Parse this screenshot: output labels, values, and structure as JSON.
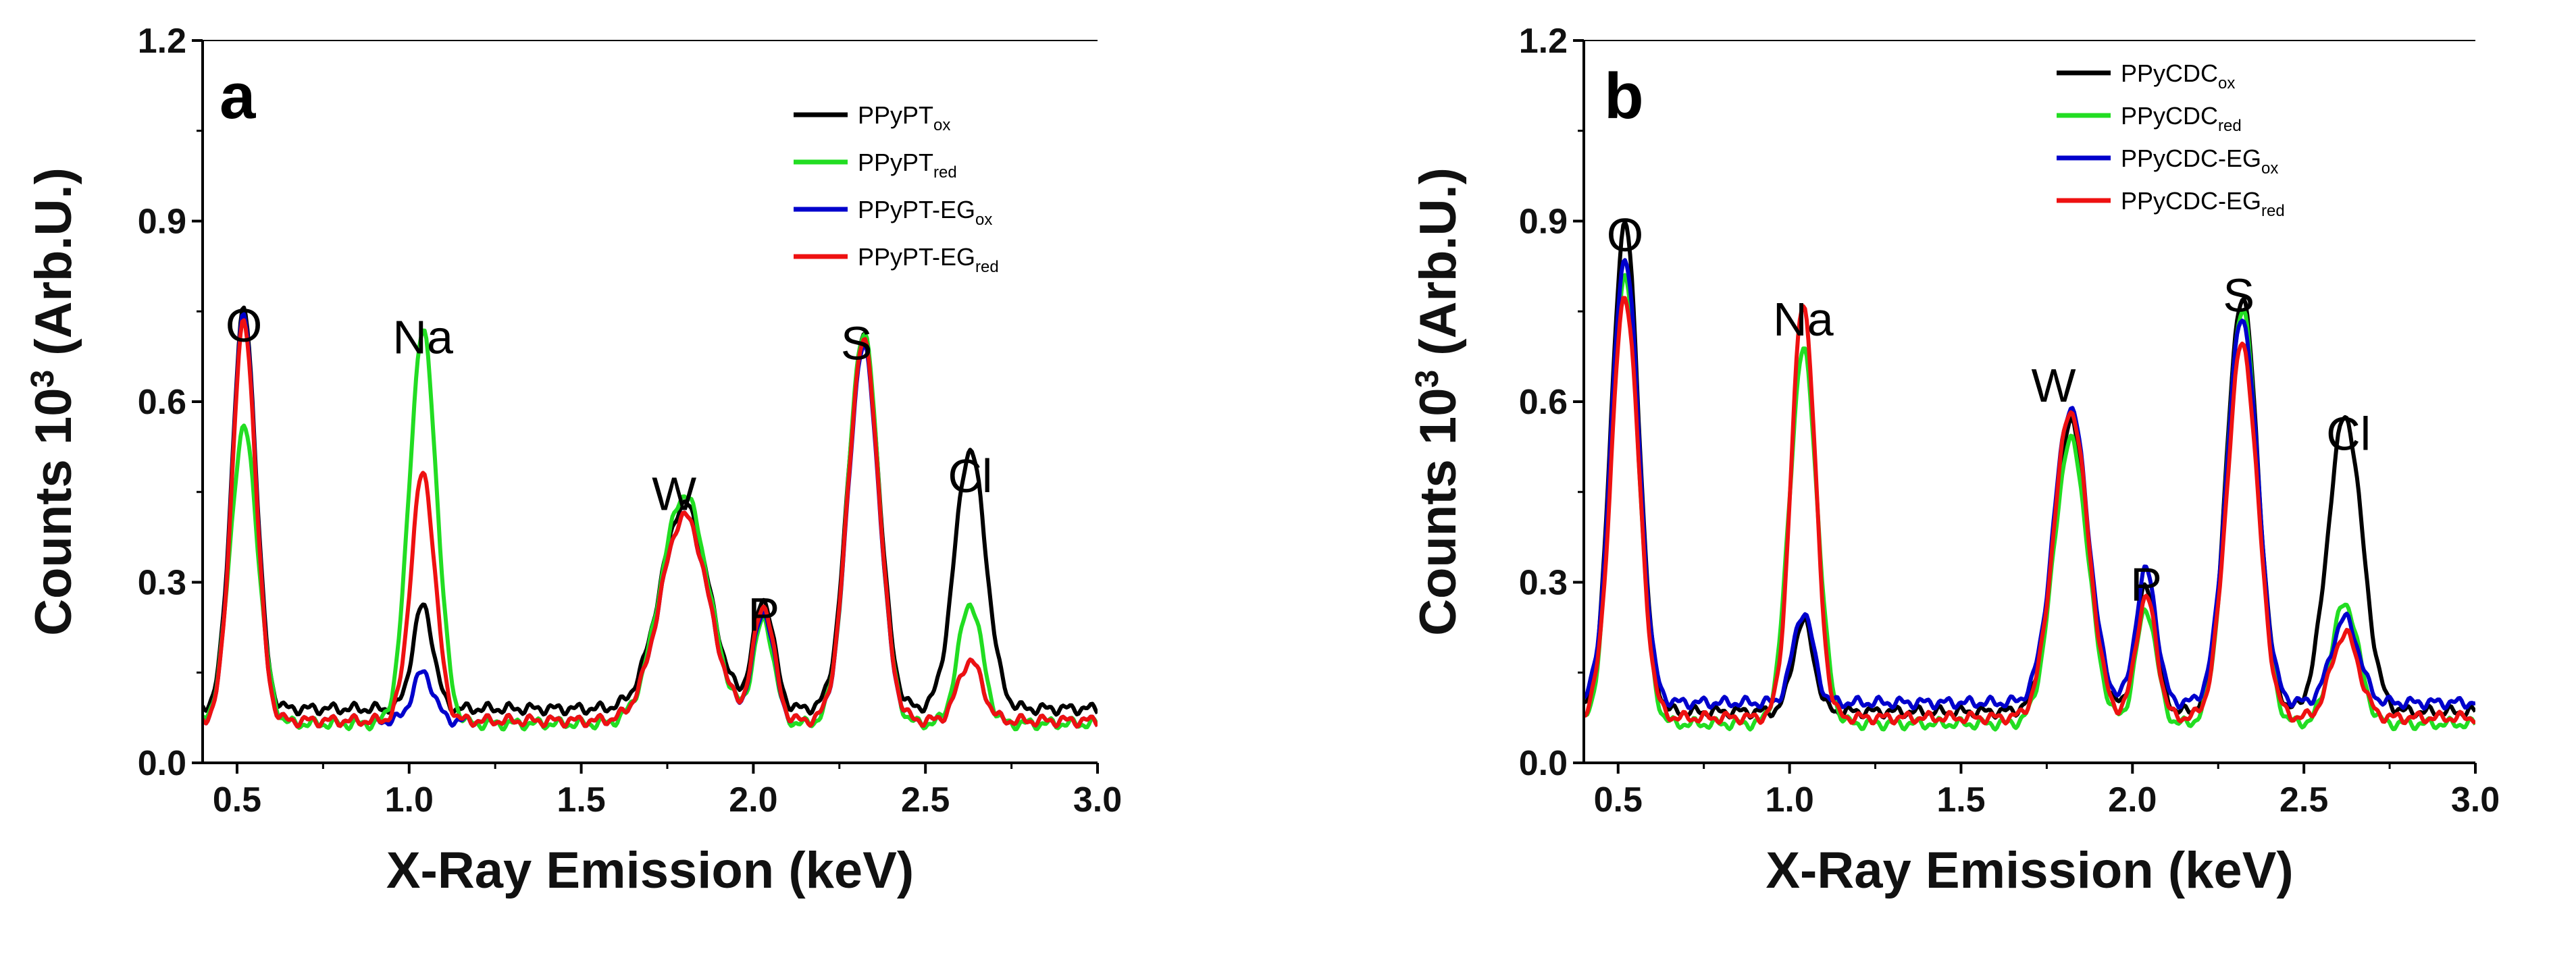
{
  "chart_data": [
    {
      "type": "line",
      "panel": "a",
      "title": "",
      "xlabel": "X-Ray Emission (keV)",
      "ylabel_main": "Counts 10",
      "ylabel_sup": "3",
      "ylabel_tail": " (Arb.U.)",
      "xlim": [
        0.4,
        3.0
      ],
      "ylim": [
        0.0,
        1.2
      ],
      "xticks": [
        "0.5",
        "1.0",
        "1.5",
        "2.0",
        "2.5",
        "3.0"
      ],
      "yticks": [
        "0.0",
        "0.3",
        "0.6",
        "0.9",
        "1.2"
      ],
      "legend_position": "top-right",
      "peak_labels": [
        {
          "text": "O",
          "x": 0.52,
          "y": 0.7
        },
        {
          "text": "Na",
          "x": 1.04,
          "y": 0.68
        },
        {
          "text": "W",
          "x": 1.77,
          "y": 0.42
        },
        {
          "text": "P",
          "x": 2.03,
          "y": 0.22
        },
        {
          "text": "S",
          "x": 2.3,
          "y": 0.67
        },
        {
          "text": "Cl",
          "x": 2.63,
          "y": 0.45
        }
      ],
      "series": [
        {
          "name": "PPyPT",
          "sub": "ox",
          "color": "#000000",
          "baseline": 0.09,
          "peaks": [
            [
              0.52,
              0.66,
              0.035
            ],
            [
              1.04,
              0.17,
              0.03
            ],
            [
              1.8,
              0.34,
              0.07
            ],
            [
              2.03,
              0.18,
              0.03
            ],
            [
              2.32,
              0.62,
              0.045
            ],
            [
              2.63,
              0.43,
              0.045
            ]
          ]
        },
        {
          "name": "PPyPT",
          "sub": "red",
          "color": "#22dd22",
          "baseline": 0.065,
          "peaks": [
            [
              0.52,
              0.49,
              0.04
            ],
            [
              1.04,
              0.65,
              0.04
            ],
            [
              1.8,
              0.38,
              0.07
            ],
            [
              2.03,
              0.17,
              0.03
            ],
            [
              2.32,
              0.65,
              0.045
            ],
            [
              2.63,
              0.2,
              0.035
            ]
          ]
        },
        {
          "name": "PPyPT-EG",
          "sub": "ox",
          "color": "#0000cc",
          "baseline": 0.07,
          "peaks": [
            [
              0.52,
              0.67,
              0.035
            ],
            [
              1.04,
              0.08,
              0.03
            ],
            [
              1.8,
              0.34,
              0.07
            ],
            [
              2.03,
              0.18,
              0.03
            ],
            [
              2.32,
              0.62,
              0.045
            ],
            [
              2.63,
              0.1,
              0.035
            ]
          ]
        },
        {
          "name": "PPyPT-EG",
          "sub": "red",
          "color": "#ee1111",
          "baseline": 0.07,
          "peaks": [
            [
              0.52,
              0.66,
              0.035
            ],
            [
              1.04,
              0.41,
              0.035
            ],
            [
              1.8,
              0.34,
              0.07
            ],
            [
              2.03,
              0.19,
              0.03
            ],
            [
              2.32,
              0.63,
              0.045
            ],
            [
              2.63,
              0.1,
              0.035
            ]
          ]
        }
      ]
    },
    {
      "type": "line",
      "panel": "b",
      "title": "",
      "xlabel": "X-Ray Emission (keV)",
      "ylabel_main": "Counts 10",
      "ylabel_sup": "3",
      "ylabel_tail": " (Arb.U.)",
      "xlim": [
        0.4,
        3.0
      ],
      "ylim": [
        0.0,
        1.2
      ],
      "xticks": [
        "0.5",
        "1.0",
        "1.5",
        "2.0",
        "2.5",
        "3.0"
      ],
      "yticks": [
        "0.0",
        "0.3",
        "0.6",
        "0.9",
        "1.2"
      ],
      "legend_position": "top-right",
      "peak_labels": [
        {
          "text": "O",
          "x": 0.52,
          "y": 0.85
        },
        {
          "text": "Na",
          "x": 1.04,
          "y": 0.71
        },
        {
          "text": "W",
          "x": 1.77,
          "y": 0.6
        },
        {
          "text": "P",
          "x": 2.04,
          "y": 0.27
        },
        {
          "text": "S",
          "x": 2.31,
          "y": 0.75
        },
        {
          "text": "Cl",
          "x": 2.63,
          "y": 0.52
        }
      ],
      "series": [
        {
          "name": "PPyCDC",
          "sub": "ox",
          "color": "#000000",
          "baseline": 0.085,
          "peaks": [
            [
              0.52,
              0.81,
              0.04
            ],
            [
              1.04,
              0.15,
              0.03
            ],
            [
              1.82,
              0.48,
              0.05
            ],
            [
              2.04,
              0.21,
              0.03
            ],
            [
              2.32,
              0.69,
              0.045
            ],
            [
              2.62,
              0.49,
              0.05
            ]
          ]
        },
        {
          "name": "PPyCDC",
          "sub": "red",
          "color": "#22dd22",
          "baseline": 0.065,
          "peaks": [
            [
              0.52,
              0.74,
              0.04
            ],
            [
              1.04,
              0.62,
              0.04
            ],
            [
              1.82,
              0.47,
              0.05
            ],
            [
              2.04,
              0.19,
              0.03
            ],
            [
              2.32,
              0.69,
              0.045
            ],
            [
              2.62,
              0.2,
              0.04
            ]
          ]
        },
        {
          "name": "PPyCDC-EG",
          "sub": "ox",
          "color": "#0000cc",
          "baseline": 0.1,
          "peaks": [
            [
              0.52,
              0.74,
              0.04
            ],
            [
              1.04,
              0.15,
              0.03
            ],
            [
              1.82,
              0.49,
              0.05
            ],
            [
              2.04,
              0.22,
              0.03
            ],
            [
              2.32,
              0.64,
              0.045
            ],
            [
              2.62,
              0.14,
              0.04
            ]
          ]
        },
        {
          "name": "PPyCDC-EG",
          "sub": "red",
          "color": "#ee1111",
          "baseline": 0.075,
          "peaks": [
            [
              0.52,
              0.7,
              0.04
            ],
            [
              1.04,
              0.69,
              0.035
            ],
            [
              1.82,
              0.51,
              0.05
            ],
            [
              2.04,
              0.2,
              0.03
            ],
            [
              2.32,
              0.62,
              0.045
            ],
            [
              2.62,
              0.14,
              0.04
            ]
          ]
        }
      ]
    }
  ]
}
